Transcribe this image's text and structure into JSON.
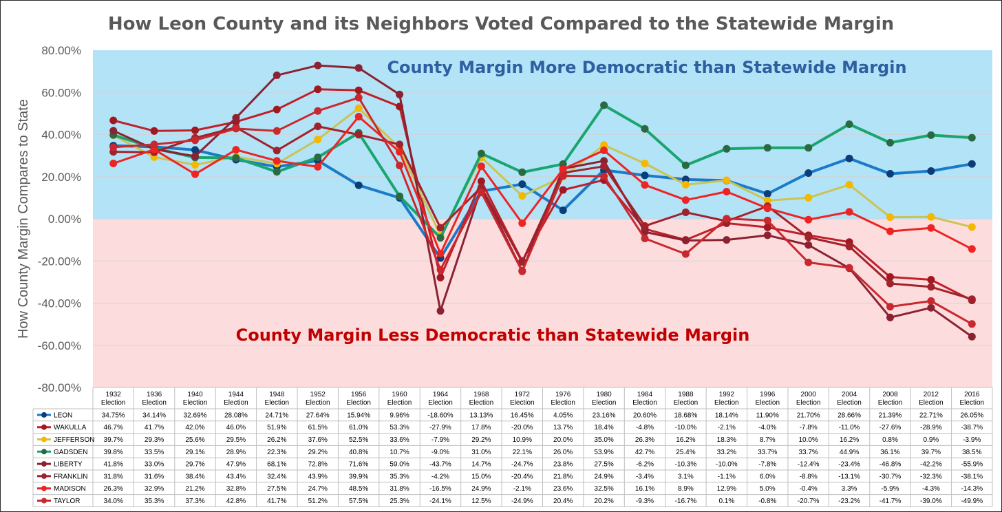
{
  "chart_data": {
    "type": "line",
    "title": "How Leon County and its Neighbors Voted Compared to the Statewide Margin",
    "ylabel": "How County Margin Compares to State",
    "xlabel": "",
    "ylim": [
      -80,
      80
    ],
    "yticks": [
      "80.00%",
      "60.00%",
      "40.00%",
      "20.00%",
      "0.00%",
      "-20.00%",
      "-40.00%",
      "-60.00%",
      "-80.00%"
    ],
    "grid": true,
    "annotations": {
      "top": "County Margin More Democratic than Statewide Margin",
      "bottom": "County Margin Less Democratic than Statewide Margin"
    },
    "band_colors": {
      "positive": "#b3e3f7",
      "negative": "#fcdcdc"
    },
    "categories": [
      "1932",
      "1936",
      "1940",
      "1944",
      "1948",
      "1952",
      "1956",
      "1960",
      "1964",
      "1968",
      "1972",
      "1976",
      "1980",
      "1984",
      "1988",
      "1992",
      "1996",
      "2000",
      "2004",
      "2008",
      "2012",
      "2016"
    ],
    "category_suffix": "Election",
    "series": [
      {
        "name": "LEON",
        "color": "#1a7ac8",
        "marker": "#0b3d7a",
        "width": 4,
        "labels": [
          "34.75%",
          "34.14%",
          "32.69%",
          "28.08%",
          "24.71%",
          "27.64%",
          "15.94%",
          "9.96%",
          "-18.60%",
          "13.13%",
          "16.45%",
          "4.05%",
          "23.16%",
          "20.60%",
          "18.68%",
          "18.14%",
          "11.90%",
          "21.70%",
          "28.66%",
          "21.39%",
          "22.71%",
          "26.05%"
        ],
        "values": [
          34.75,
          34.14,
          32.69,
          28.08,
          24.71,
          27.64,
          15.94,
          9.96,
          -18.6,
          13.13,
          16.45,
          4.05,
          23.16,
          20.6,
          18.68,
          18.14,
          11.9,
          21.7,
          28.66,
          21.39,
          22.71,
          26.05
        ]
      },
      {
        "name": "WAKULLA",
        "color": "#c0202a",
        "marker": "#a01820",
        "width": 3,
        "labels": [
          "46.7%",
          "41.7%",
          "42.0%",
          "46.0%",
          "51.9%",
          "61.5%",
          "61.0%",
          "53.3%",
          "-27.9%",
          "17.8%",
          "-20.0%",
          "13.7%",
          "18.4%",
          "-4.8%",
          "-10.0%",
          "-2.1%",
          "-4.0%",
          "-7.8%",
          "-11.0%",
          "-27.6%",
          "-28.9%",
          "-38.7%"
        ],
        "values": [
          46.7,
          41.7,
          42.0,
          46.0,
          51.9,
          61.5,
          61.0,
          53.3,
          -27.9,
          17.8,
          -20.0,
          13.7,
          18.4,
          -4.8,
          -10.0,
          -2.1,
          -4.0,
          -7.8,
          -11.0,
          -27.6,
          -28.9,
          -38.7
        ]
      },
      {
        "name": "JEFFERSON",
        "color": "#c9c454",
        "marker": "#f5b800",
        "width": 3,
        "labels": [
          "39.7%",
          "29.3%",
          "25.6%",
          "29.5%",
          "26.2%",
          "37.6%",
          "52.5%",
          "33.6%",
          "-7.9%",
          "29.2%",
          "10.9%",
          "20.0%",
          "35.0%",
          "26.3%",
          "16.2%",
          "18.3%",
          "8.7%",
          "10.0%",
          "16.2%",
          "0.8%",
          "0.9%",
          "-3.9%"
        ],
        "values": [
          39.7,
          29.3,
          25.6,
          29.5,
          26.2,
          37.6,
          52.5,
          33.6,
          -7.9,
          29.2,
          10.9,
          20.0,
          35.0,
          26.3,
          16.2,
          18.3,
          8.7,
          10.0,
          16.2,
          0.8,
          0.9,
          -3.9
        ]
      },
      {
        "name": "GADSDEN",
        "color": "#1aa56f",
        "marker": "#2a6a42",
        "width": 4,
        "labels": [
          "39.8%",
          "33.5%",
          "29.1%",
          "28.9%",
          "22.3%",
          "29.2%",
          "40.8%",
          "10.7%",
          "-9.0%",
          "31.0%",
          "22.1%",
          "26.0%",
          "53.9%",
          "42.7%",
          "25.4%",
          "33.2%",
          "33.7%",
          "33.7%",
          "44.9%",
          "36.1%",
          "39.7%",
          "38.5%"
        ],
        "values": [
          39.8,
          33.5,
          29.1,
          28.9,
          22.3,
          29.2,
          40.8,
          10.7,
          -9.0,
          31.0,
          22.1,
          26.0,
          53.9,
          42.7,
          25.4,
          33.2,
          33.7,
          33.7,
          44.9,
          36.1,
          39.7,
          38.5
        ]
      },
      {
        "name": "LIBERTY",
        "color": "#8b2232",
        "marker": "#8b2232",
        "width": 3,
        "labels": [
          "41.8%",
          "33.0%",
          "29.7%",
          "47.9%",
          "68.1%",
          "72.8%",
          "71.6%",
          "59.0%",
          "-43.7%",
          "14.7%",
          "-24.7%",
          "23.8%",
          "27.5%",
          "-6.2%",
          "-10.3%",
          "-10.0%",
          "-7.8%",
          "-12.4%",
          "-23.4%",
          "-46.8%",
          "-42.2%",
          "-55.9%"
        ],
        "values": [
          41.8,
          33.0,
          29.7,
          47.9,
          68.1,
          72.8,
          71.6,
          59.0,
          -43.7,
          14.7,
          -24.7,
          23.8,
          27.5,
          -6.2,
          -10.3,
          -10.0,
          -7.8,
          -12.4,
          -23.4,
          -46.8,
          -42.2,
          -55.9
        ]
      },
      {
        "name": "FRANKLIN",
        "color": "#a0222c",
        "marker": "#a0222c",
        "width": 3,
        "labels": [
          "31.8%",
          "31.6%",
          "38.4%",
          "43.4%",
          "32.4%",
          "43.9%",
          "39.9%",
          "35.3%",
          "-4.2%",
          "15.0%",
          "-20.4%",
          "21.8%",
          "24.9%",
          "-3.4%",
          "3.1%",
          "-1.1%",
          "6.0%",
          "-8.8%",
          "-13.1%",
          "-30.7%",
          "-32.3%",
          "-38.1%"
        ],
        "values": [
          31.8,
          31.6,
          38.4,
          43.4,
          32.4,
          43.9,
          39.9,
          35.3,
          -4.2,
          15.0,
          -20.4,
          21.8,
          24.9,
          -3.4,
          3.1,
          -1.1,
          6.0,
          -8.8,
          -13.1,
          -30.7,
          -32.3,
          -38.1
        ]
      },
      {
        "name": "MADISON",
        "color": "#ec2424",
        "marker": "#ec2424",
        "width": 3,
        "labels": [
          "26.3%",
          "32.9%",
          "21.2%",
          "32.8%",
          "27.5%",
          "24.7%",
          "48.5%",
          "31.8%",
          "-16.5%",
          "24.9%",
          "-2.1%",
          "23.6%",
          "32.5%",
          "16.1%",
          "8.9%",
          "12.9%",
          "5.0%",
          "-0.4%",
          "3.3%",
          "-5.9%",
          "-4.3%",
          "-14.3%"
        ],
        "values": [
          26.3,
          32.9,
          21.2,
          32.8,
          27.5,
          24.7,
          48.5,
          31.8,
          -16.5,
          24.9,
          -2.1,
          23.6,
          32.5,
          16.1,
          8.9,
          12.9,
          5.0,
          -0.4,
          3.3,
          -5.9,
          -4.3,
          -14.3
        ]
      },
      {
        "name": "TAYLOR",
        "color": "#c8282e",
        "marker": "#c8282e",
        "width": 3,
        "labels": [
          "34.0%",
          "35.3%",
          "37.3%",
          "42.8%",
          "41.7%",
          "51.2%",
          "57.5%",
          "25.3%",
          "-24.1%",
          "12.5%",
          "-24.9%",
          "20.4%",
          "20.2%",
          "-9.3%",
          "-16.7%",
          "0.1%",
          "-0.8%",
          "-20.7%",
          "-23.2%",
          "-41.7%",
          "-39.0%",
          "-49.9%"
        ],
        "values": [
          34.0,
          35.3,
          37.3,
          42.8,
          41.7,
          51.2,
          57.5,
          25.3,
          -24.1,
          12.5,
          -24.9,
          20.4,
          20.2,
          -9.3,
          -16.7,
          0.1,
          -0.8,
          -20.7,
          -23.2,
          -41.7,
          -39.0,
          -49.9
        ]
      }
    ]
  }
}
